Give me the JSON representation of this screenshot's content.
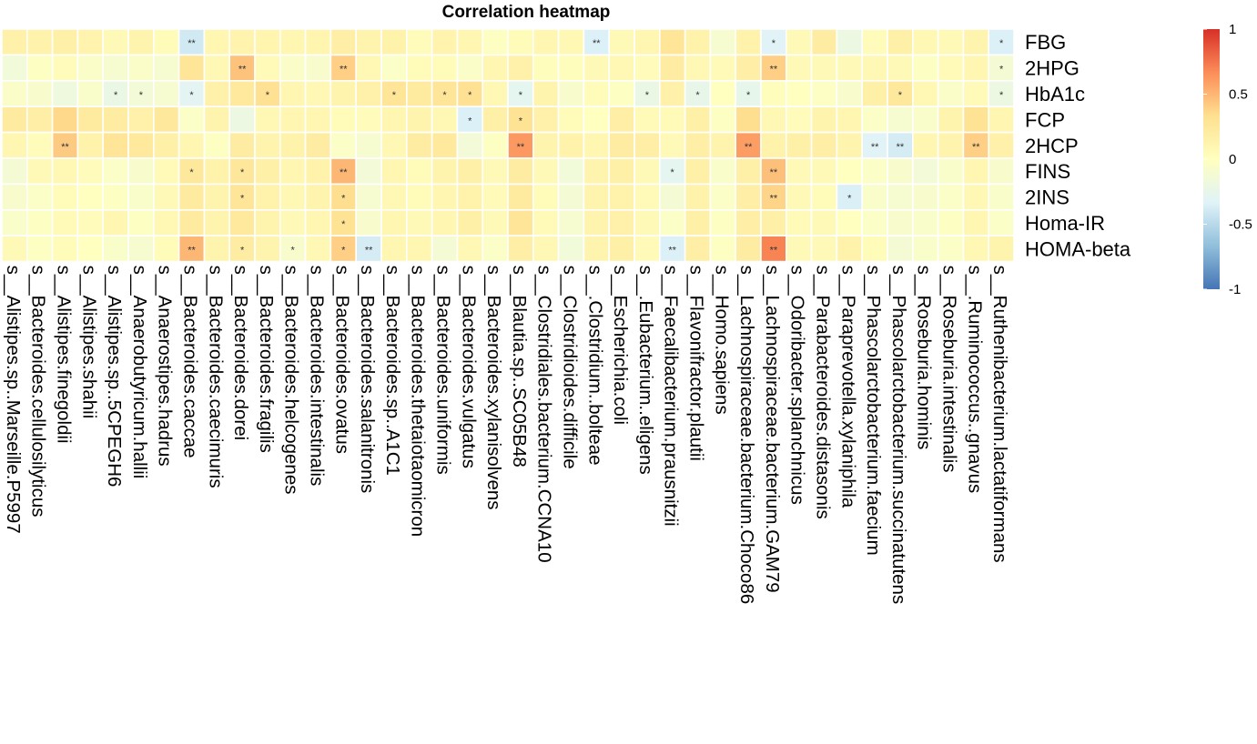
{
  "chart_data": {
    "type": "heatmap",
    "title": "Correlation heatmap",
    "rows": [
      "FBG",
      "2HPG",
      "HbA1c",
      "FCP",
      "2HCP",
      "FINS",
      "2INS",
      "Homa-IR",
      "HOMA-beta"
    ],
    "columns": [
      "s__Alistipes.sp..Marseille.P5997",
      "s__Bacteroides.cellulosilyticus",
      "s__Alistipes.finegoldii",
      "s__Alistipes.shahii",
      "s__Alistipes.sp..5CPEGH6",
      "s__Anaerobutyricum.hallii",
      "s__Anaerostipes.hadrus",
      "s__Bacteroides.caccae",
      "s__Bacteroides.caecimuris",
      "s__Bacteroides.dorei",
      "s__Bacteroides.fragilis",
      "s__Bacteroides.helcogenes",
      "s__Bacteroides.intestinalis",
      "s__Bacteroides.ovatus",
      "s__Bacteroides.salanitronis",
      "s__Bacteroides.sp..A1C1",
      "s__Bacteroides.thetaiotaomicron",
      "s__Bacteroides.uniformis",
      "s__Bacteroides.vulgatus",
      "s__Bacteroides.xylanisolvens",
      "s__Blautia.sp..SC05B48",
      "s__Clostridiales.bacterium.CCNA10",
      "s__Clostridioides.difficile",
      "s__.Clostridium..bolteae",
      "s__Escherichia.coli",
      "s__.Eubacterium..eligens",
      "s__Faecalibacterium.prausnitzii",
      "s__Flavonifractor.plautii",
      "s__Homo.sapiens",
      "s__Lachnospiraceae.bacterium.Choco86",
      "s__Lachnospiraceae.bacterium.GAM79",
      "s__Odoribacter.splanchnicus",
      "s__Parabacteroides.distasonis",
      "s__Paraprevotella.xylaniphila",
      "s__Phascolarctobacterium.faecium",
      "s__Phascolarctobacterium.succinatutens",
      "s__Roseburia.hominis",
      "s__Roseburia.intestinalis",
      "s__.Ruminococcus..gnavus",
      "s__Ruthenibacterium.lactatiformans"
    ],
    "values": [
      [
        0.15,
        0.14,
        0.16,
        0.13,
        0.06,
        0.12,
        0.04,
        -0.4,
        0.1,
        0.13,
        0.11,
        0.1,
        0.11,
        0.18,
        0.12,
        0.14,
        0.03,
        0.13,
        0.1,
        -0.02,
        0.04,
        0.1,
        0.08,
        -0.35,
        0.06,
        0.1,
        0.28,
        0.14,
        -0.1,
        0.14,
        -0.32,
        0.06,
        0.2,
        -0.2,
        0.03,
        0.16,
        0.08,
        0.06,
        0.12,
        -0.35
      ],
      [
        -0.15,
        -0.02,
        0.03,
        -0.05,
        -0.1,
        -0.05,
        -0.1,
        0.28,
        0.08,
        0.45,
        0.05,
        -0.05,
        -0.08,
        0.4,
        0.07,
        -0.04,
        0.04,
        0.04,
        -0.05,
        0.1,
        0.15,
        0.02,
        0.02,
        0.06,
        0.08,
        0.03,
        0.2,
        0.08,
        0.05,
        0.18,
        0.4,
        0.06,
        0.06,
        0.06,
        0.08,
        0.06,
        -0.02,
        0.05,
        0.1,
        -0.12
      ],
      [
        -0.05,
        -0.08,
        -0.18,
        -0.06,
        -0.22,
        -0.14,
        -0.1,
        -0.3,
        0.15,
        0.24,
        0.32,
        0.1,
        0.08,
        0.12,
        0.15,
        0.28,
        0.22,
        0.28,
        0.32,
        0.08,
        -0.28,
        0.12,
        -0.08,
        0.04,
        -0.02,
        -0.22,
        0.15,
        -0.25,
        0.0,
        -0.26,
        0.02,
        0.0,
        -0.03,
        -0.08,
        0.16,
        0.25,
        0.08,
        -0.05,
        0.05,
        -0.2
      ],
      [
        0.22,
        0.18,
        0.36,
        0.22,
        0.2,
        0.15,
        0.25,
        -0.04,
        0.12,
        -0.2,
        0.08,
        0.1,
        0.1,
        0.04,
        0.03,
        0.1,
        0.12,
        0.08,
        -0.35,
        0.16,
        0.3,
        0.15,
        0.04,
        0.0,
        0.18,
        0.05,
        0.05,
        0.16,
        -0.02,
        0.34,
        0.08,
        0.03,
        0.12,
        0.1,
        -0.04,
        -0.1,
        -0.06,
        0.12,
        0.3,
        0.1
      ],
      [
        0.1,
        0.03,
        0.42,
        0.14,
        0.28,
        0.24,
        0.16,
        0.1,
        -0.02,
        0.2,
        0.12,
        0.14,
        0.2,
        -0.04,
        -0.1,
        0.08,
        0.2,
        0.24,
        -0.14,
        -0.02,
        0.62,
        0.12,
        0.14,
        0.1,
        0.2,
        0.18,
        0.06,
        0.18,
        0.12,
        0.6,
        0.14,
        0.16,
        0.18,
        0.12,
        -0.32,
        -0.38,
        0.1,
        0.12,
        0.4,
        0.15
      ],
      [
        -0.12,
        0.06,
        0.08,
        0.03,
        -0.04,
        -0.08,
        0.05,
        0.25,
        0.14,
        0.26,
        0.16,
        0.1,
        0.14,
        0.5,
        -0.14,
        0.1,
        0.04,
        0.12,
        0.16,
        0.06,
        0.2,
        0.06,
        -0.15,
        0.12,
        0.16,
        0.06,
        -0.28,
        0.16,
        -0.06,
        0.16,
        0.46,
        0.06,
        0.06,
        0.0,
        -0.04,
        -0.08,
        -0.14,
        -0.06,
        0.1,
        -0.08
      ],
      [
        -0.08,
        -0.04,
        0.04,
        0.0,
        -0.02,
        -0.06,
        0.06,
        0.22,
        0.12,
        0.28,
        0.14,
        0.08,
        0.12,
        0.34,
        -0.1,
        0.08,
        0.04,
        0.1,
        0.14,
        0.05,
        0.22,
        0.04,
        -0.12,
        0.12,
        0.14,
        0.05,
        -0.12,
        0.14,
        -0.04,
        0.18,
        0.38,
        0.06,
        0.04,
        -0.36,
        -0.06,
        -0.1,
        -0.08,
        -0.04,
        0.08,
        -0.06
      ],
      [
        -0.06,
        -0.02,
        0.05,
        0.03,
        0.1,
        -0.02,
        0.08,
        0.22,
        0.12,
        0.24,
        0.12,
        0.06,
        0.1,
        0.3,
        -0.08,
        0.1,
        0.06,
        0.1,
        0.16,
        0.06,
        0.28,
        0.05,
        -0.1,
        0.12,
        0.15,
        0.06,
        -0.04,
        0.16,
        -0.02,
        0.18,
        0.16,
        0.05,
        0.06,
        0.0,
        -0.04,
        -0.08,
        -0.06,
        -0.02,
        0.1,
        -0.04
      ],
      [
        0.06,
        -0.02,
        0.04,
        0.0,
        -0.06,
        -0.1,
        0.04,
        0.5,
        0.12,
        0.2,
        0.12,
        -0.08,
        0.08,
        0.4,
        -0.38,
        0.1,
        0.1,
        -0.12,
        0.08,
        -0.04,
        0.18,
        0.08,
        -0.15,
        0.12,
        0.16,
        0.05,
        -0.35,
        0.18,
        -0.02,
        0.2,
        0.7,
        0.06,
        0.06,
        0.14,
        0.04,
        -0.12,
        -0.06,
        -0.04,
        0.08,
        0.12
      ]
    ],
    "significance": [
      [
        "",
        "",
        "",
        "",
        "",
        "",
        "",
        "**",
        "",
        "",
        "",
        "",
        "",
        "",
        "",
        "",
        "",
        "",
        "",
        "",
        "",
        "",
        "",
        "**",
        "",
        "",
        "",
        "",
        "",
        "",
        "*",
        "",
        "",
        "",
        "",
        "",
        "",
        "",
        "",
        "*"
      ],
      [
        "",
        "",
        "",
        "",
        "",
        "",
        "",
        "",
        "",
        "**",
        "",
        "",
        "",
        "**",
        "",
        "",
        "",
        "",
        "",
        "",
        "",
        "",
        "",
        "",
        "",
        "",
        "",
        "",
        "",
        "",
        "**",
        "",
        "",
        "",
        "",
        "",
        "",
        "",
        "",
        "*"
      ],
      [
        "",
        "",
        "",
        "",
        "*",
        "*",
        "",
        "*",
        "",
        "",
        "*",
        "",
        "",
        "",
        "",
        "*",
        "",
        "*",
        "*",
        "",
        "*",
        "",
        "",
        "",
        "",
        "*",
        "",
        "*",
        "",
        "*",
        "",
        "",
        "",
        "",
        "",
        "*",
        "",
        "",
        "",
        "*"
      ],
      [
        "",
        "",
        "",
        "",
        "",
        "",
        "",
        "",
        "",
        "",
        "",
        "",
        "",
        "",
        "",
        "",
        "",
        "",
        "*",
        "",
        "*",
        "",
        "",
        "",
        "",
        "",
        "",
        "",
        "",
        "",
        "",
        "",
        "",
        "",
        "",
        "",
        "",
        "",
        "",
        ""
      ],
      [
        "",
        "",
        "**",
        "",
        "",
        "",
        "",
        "",
        "",
        "",
        "",
        "",
        "",
        "",
        "",
        "",
        "",
        "",
        "",
        "",
        "**",
        "",
        "",
        "",
        "",
        "",
        "",
        "",
        "",
        "**",
        "",
        "",
        "",
        "",
        "**",
        "**",
        "",
        "",
        "**",
        ""
      ],
      [
        "",
        "",
        "",
        "",
        "",
        "",
        "",
        "*",
        "",
        "*",
        "",
        "",
        "",
        "**",
        "",
        "",
        "",
        "",
        "",
        "",
        "",
        "",
        "",
        "",
        "",
        "",
        "*",
        "",
        "",
        "",
        "**",
        "",
        "",
        "",
        "",
        "",
        "",
        "",
        "",
        ""
      ],
      [
        "",
        "",
        "",
        "",
        "",
        "",
        "",
        "",
        "",
        "*",
        "",
        "",
        "",
        "*",
        "",
        "",
        "",
        "",
        "",
        "",
        "",
        "",
        "",
        "",
        "",
        "",
        "",
        "",
        "",
        "",
        "**",
        "",
        "",
        "*",
        "",
        "",
        "",
        "",
        "",
        ""
      ],
      [
        "",
        "",
        "",
        "",
        "",
        "",
        "",
        "",
        "",
        "",
        "",
        "",
        "",
        "*",
        "",
        "",
        "",
        "",
        "",
        "",
        "",
        "",
        "",
        "",
        "",
        "",
        "",
        "",
        "",
        "",
        "",
        "",
        "",
        "",
        "",
        "",
        "",
        "",
        "",
        ""
      ],
      [
        "",
        "",
        "",
        "",
        "",
        "",
        "",
        "**",
        "",
        "*",
        "",
        "*",
        "",
        "*",
        "**",
        "",
        "",
        "",
        "",
        "",
        "",
        "",
        "",
        "",
        "",
        "",
        "**",
        "",
        "",
        "",
        "**",
        "",
        "",
        "",
        "",
        "",
        "",
        "",
        "",
        ""
      ]
    ],
    "colorbar": {
      "range": [
        -1,
        1
      ],
      "tick_values": [
        1,
        0.5,
        0,
        -0.5,
        -1
      ],
      "tick_labels": [
        "1",
        "0.5",
        "0",
        "-0.5",
        "-1"
      ],
      "colors": [
        "#4575b4",
        "#91bfdb",
        "#e0f3f8",
        "#ffffbf",
        "#fee090",
        "#fc8d59",
        "#d73027"
      ]
    }
  }
}
